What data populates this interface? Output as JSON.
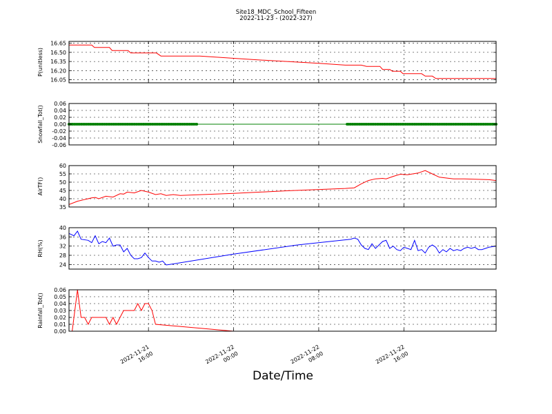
{
  "title": "Site18_MDC_School_Fifteen",
  "subtitle": "2022-11-23 - (2022-327)",
  "xlabel": "Date/Time",
  "chart_data": {
    "type": "line",
    "x_range": [
      "2022-11-21 08:32",
      "2022-11-23 00:40"
    ],
    "x_ticks": [
      {
        "t": "2022-11-21 16:00",
        "label": [
          "2022-11-21",
          "16:00"
        ]
      },
      {
        "t": "2022-11-22 00:00",
        "label": [
          "2022-11-22",
          "00:00"
        ]
      },
      {
        "t": "2022-11-22 08:00",
        "label": [
          "2022-11-22",
          "08:00"
        ]
      },
      {
        "t": "2022-11-22 16:00",
        "label": [
          "2022-11-22",
          "16:00"
        ]
      }
    ],
    "panels": [
      {
        "ylabel": "P(unitless)",
        "ylim": [
          16.0,
          16.68
        ],
        "yticks": [
          "16.65",
          "16.50",
          "16.35",
          "16.20",
          "16.05"
        ],
        "ytick_values": [
          16.65,
          16.5,
          16.35,
          16.2,
          16.05
        ],
        "color": "#ff0000",
        "markers": false,
        "x": [
          "2022-11-21 08:32",
          "2022-11-21 10:40",
          "2022-11-21 10:55",
          "2022-11-21 12:20",
          "2022-11-21 12:35",
          "2022-11-21 14:05",
          "2022-11-21 14:20",
          "2022-11-21 16:45",
          "2022-11-21 17:10",
          "2022-11-21 20:50",
          "2022-11-22 02:00",
          "2022-11-22 08:00",
          "2022-11-22 10:30",
          "2022-11-22 12:00",
          "2022-11-22 12:30",
          "2022-11-22 13:45",
          "2022-11-22 14:00",
          "2022-11-22 14:40",
          "2022-11-22 14:55",
          "2022-11-22 15:40",
          "2022-11-22 15:55",
          "2022-11-22 17:40",
          "2022-11-22 18:00",
          "2022-11-22 18:40",
          "2022-11-22 19:00",
          "2022-11-23 00:40"
        ],
        "y": [
          16.62,
          16.62,
          16.58,
          16.58,
          16.53,
          16.53,
          16.49,
          16.49,
          16.44,
          16.44,
          16.38,
          16.32,
          16.29,
          16.29,
          16.27,
          16.27,
          16.22,
          16.22,
          16.19,
          16.19,
          16.15,
          16.15,
          16.11,
          16.11,
          16.07,
          16.07
        ]
      },
      {
        "ylabel": "Snowfall_Tot()",
        "ylim": [
          -0.06,
          0.06
        ],
        "yticks": [
          "0.06",
          "0.04",
          "0.02",
          "0.00",
          "-0.02",
          "-0.04",
          "-0.06"
        ],
        "ytick_values": [
          0.06,
          0.04,
          0.02,
          0.0,
          -0.02,
          -0.04,
          -0.06
        ],
        "color": "#008000",
        "markers": true,
        "marker_spans": [
          [
            "2022-11-21 08:32",
            "2022-11-21 20:40"
          ],
          [
            "2022-11-22 10:40",
            "2022-11-23 00:40"
          ]
        ],
        "marker_interval_minutes": 10,
        "x": [
          "2022-11-21 08:32",
          "2022-11-23 00:40"
        ],
        "y": [
          0.0,
          0.0
        ]
      },
      {
        "ylabel": "AirTF()",
        "ylim": [
          35,
          60
        ],
        "yticks": [
          "60",
          "55",
          "50",
          "45",
          "40",
          "35"
        ],
        "ytick_values": [
          60,
          55,
          50,
          45,
          40,
          35
        ],
        "color": "#ff0000",
        "markers": false,
        "x": [
          "2022-11-21 08:32",
          "2022-11-21 09:20",
          "2022-11-21 10:00",
          "2022-11-21 10:40",
          "2022-11-21 11:00",
          "2022-11-21 11:20",
          "2022-11-21 12:00",
          "2022-11-21 12:40",
          "2022-11-21 13:20",
          "2022-11-21 13:40",
          "2022-11-21 14:00",
          "2022-11-21 14:40",
          "2022-11-21 15:20",
          "2022-11-21 16:00",
          "2022-11-21 16:40",
          "2022-11-21 17:10",
          "2022-11-21 17:40",
          "2022-11-21 18:20",
          "2022-11-21 19:00",
          "2022-11-22 00:00",
          "2022-11-22 05:00",
          "2022-11-22 10:30",
          "2022-11-22 11:20",
          "2022-11-22 12:00",
          "2022-11-22 12:40",
          "2022-11-22 13:20",
          "2022-11-22 14:00",
          "2022-11-22 14:20",
          "2022-11-22 15:00",
          "2022-11-22 15:40",
          "2022-11-22 16:20",
          "2022-11-22 17:20",
          "2022-11-22 18:00",
          "2022-11-22 18:40",
          "2022-11-22 19:20",
          "2022-11-22 20:40",
          "2022-11-22 21:40",
          "2022-11-22 22:40",
          "2022-11-23 00:00",
          "2022-11-23 00:40"
        ],
        "y": [
          36.5,
          38.5,
          39.5,
          40.5,
          40.8,
          40.0,
          41.5,
          41.0,
          43.0,
          42.8,
          44.0,
          43.5,
          45.0,
          44.0,
          42.5,
          43.0,
          42.0,
          42.5,
          42.0,
          43.2,
          44.8,
          46.2,
          46.6,
          49.0,
          51.0,
          52.0,
          52.3,
          52.0,
          53.5,
          54.8,
          54.5,
          55.5,
          57.0,
          55.0,
          53.0,
          52.0,
          52.0,
          51.8,
          51.5,
          51.0
        ]
      },
      {
        "ylabel": "RH(%)",
        "ylim": [
          22,
          40
        ],
        "yticks": [
          "40",
          "36",
          "32",
          "28",
          "24"
        ],
        "ytick_values": [
          40,
          36,
          32,
          28,
          24
        ],
        "color": "#0000ff",
        "markers": false,
        "x": [
          "2022-11-21 08:32",
          "2022-11-21 09:00",
          "2022-11-21 09:20",
          "2022-11-21 09:40",
          "2022-11-21 10:20",
          "2022-11-21 10:40",
          "2022-11-21 11:00",
          "2022-11-21 11:20",
          "2022-11-21 11:40",
          "2022-11-21 12:00",
          "2022-11-21 12:20",
          "2022-11-21 12:40",
          "2022-11-21 13:00",
          "2022-11-21 13:20",
          "2022-11-21 13:40",
          "2022-11-21 14:00",
          "2022-11-21 14:20",
          "2022-11-21 14:40",
          "2022-11-21 15:00",
          "2022-11-21 15:20",
          "2022-11-21 15:40",
          "2022-11-21 16:00",
          "2022-11-21 16:20",
          "2022-11-21 16:40",
          "2022-11-21 17:00",
          "2022-11-21 17:20",
          "2022-11-21 17:40",
          "2022-11-21 18:00",
          "2022-11-22 00:00",
          "2022-11-22 06:00",
          "2022-11-22 11:00",
          "2022-11-22 11:20",
          "2022-11-22 11:40",
          "2022-11-22 12:00",
          "2022-11-22 12:20",
          "2022-11-22 12:40",
          "2022-11-22 13:00",
          "2022-11-22 13:20",
          "2022-11-22 13:40",
          "2022-11-22 14:00",
          "2022-11-22 14:20",
          "2022-11-22 14:40",
          "2022-11-22 15:00",
          "2022-11-22 15:20",
          "2022-11-22 15:40",
          "2022-11-22 16:00",
          "2022-11-22 16:20",
          "2022-11-22 16:40",
          "2022-11-22 17:00",
          "2022-11-22 17:20",
          "2022-11-22 17:40",
          "2022-11-22 18:00",
          "2022-11-22 18:20",
          "2022-11-22 18:40",
          "2022-11-22 19:00",
          "2022-11-22 19:20",
          "2022-11-22 19:40",
          "2022-11-22 20:00",
          "2022-11-22 20:20",
          "2022-11-22 20:40",
          "2022-11-22 21:00",
          "2022-11-22 21:20",
          "2022-11-22 21:40",
          "2022-11-22 22:00",
          "2022-11-22 22:20",
          "2022-11-22 22:40",
          "2022-11-22 23:00",
          "2022-11-22 23:20",
          "2022-11-22 23:40",
          "2022-11-23 00:00",
          "2022-11-23 00:40"
        ],
        "y": [
          37.5,
          36.5,
          38.5,
          35.0,
          34.5,
          33.5,
          36.5,
          33.0,
          34.0,
          33.5,
          35.5,
          32.0,
          32.5,
          32.5,
          29.5,
          31.0,
          28.0,
          26.5,
          26.5,
          27.0,
          29.0,
          27.0,
          25.5,
          25.5,
          25.0,
          25.5,
          23.8,
          24.0,
          28.5,
          32.5,
          35.0,
          35.5,
          35.0,
          32.5,
          31.0,
          30.5,
          33.0,
          31.0,
          32.5,
          34.0,
          34.5,
          31.0,
          32.0,
          30.5,
          30.0,
          31.5,
          31.0,
          30.5,
          34.5,
          30.0,
          30.5,
          29.0,
          31.5,
          32.5,
          31.5,
          29.0,
          30.5,
          29.5,
          31.0,
          30.0,
          30.5,
          30.0,
          31.0,
          31.5,
          31.0,
          31.5,
          30.5,
          30.5,
          31.0,
          31.5,
          32.0
        ]
      },
      {
        "ylabel": "Rainfall_Tot()",
        "ylim": [
          0,
          0.06
        ],
        "yticks": [
          "0.06",
          "0.05",
          "0.04",
          "0.03",
          "0.02",
          "0.01",
          "0.00"
        ],
        "ytick_values": [
          0.06,
          0.05,
          0.04,
          0.03,
          0.02,
          0.01,
          0.0
        ],
        "color": "#ff0000",
        "markers": false,
        "x": [
          "2022-11-21 08:32",
          "2022-11-21 08:50",
          "2022-11-21 09:20",
          "2022-11-21 09:40",
          "2022-11-21 10:00",
          "2022-11-21 10:20",
          "2022-11-21 10:40",
          "2022-11-21 11:00",
          "2022-11-21 11:20",
          "2022-11-21 11:40",
          "2022-11-21 12:00",
          "2022-11-21 12:20",
          "2022-11-21 12:40",
          "2022-11-21 13:00",
          "2022-11-21 13:20",
          "2022-11-21 13:40",
          "2022-11-21 14:00",
          "2022-11-21 14:20",
          "2022-11-21 14:40",
          "2022-11-21 15:00",
          "2022-11-21 15:20",
          "2022-11-21 15:40",
          "2022-11-21 16:00",
          "2022-11-21 16:20",
          "2022-11-21 16:40",
          "2022-11-22 00:00",
          "2022-11-23 00:40"
        ],
        "y": [
          0.0,
          0.0,
          0.06,
          0.02,
          0.02,
          0.01,
          0.02,
          0.02,
          0.02,
          0.02,
          0.02,
          0.01,
          0.02,
          0.01,
          0.02,
          0.03,
          0.03,
          0.03,
          0.03,
          0.04,
          0.03,
          0.04,
          0.04,
          0.03,
          0.01,
          0.0,
          0.0
        ]
      }
    ]
  }
}
